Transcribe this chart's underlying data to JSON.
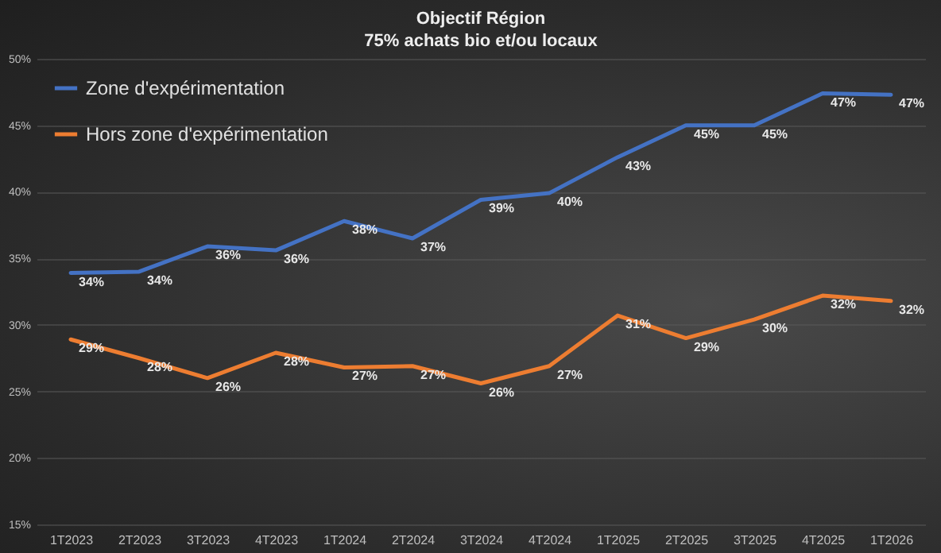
{
  "chart_data": {
    "type": "line",
    "title": "Objectif  Région",
    "subtitle": "75% achats  bio et/ou locaux",
    "categories": [
      "1T2023",
      "2T2023",
      "3T2023",
      "4T2023",
      "1T2024",
      "2T2024",
      "3T2024",
      "4T2024",
      "1T2025",
      "2T2025",
      "3T2025",
      "4T2025",
      "1T2026"
    ],
    "series": [
      {
        "name": "Zone d'expérimentation",
        "color": "#4472c4",
        "values": [
          33.9,
          34.0,
          35.9,
          35.6,
          37.8,
          36.5,
          39.4,
          39.9,
          42.6,
          45.0,
          45.0,
          47.4,
          47.3
        ],
        "value_labels": [
          "34%",
          "34%",
          "36%",
          "36%",
          "38%",
          "37%",
          "39%",
          "40%",
          "43%",
          "45%",
          "45%",
          "47%",
          "47%"
        ]
      },
      {
        "name": "Hors zone d'expérimentation",
        "color": "#ed7d31",
        "values": [
          28.9,
          27.5,
          26.0,
          27.9,
          26.8,
          26.9,
          25.6,
          26.9,
          30.7,
          29.0,
          30.4,
          32.2,
          31.8
        ],
        "value_labels": [
          "29%",
          "28%",
          "26%",
          "28%",
          "27%",
          "27%",
          "26%",
          "27%",
          "31%",
          "29%",
          "30%",
          "32%",
          "32%"
        ]
      }
    ],
    "ylim": [
      15,
      50
    ],
    "yticks": [
      {
        "value": 15,
        "label": "15%"
      },
      {
        "value": 20,
        "label": "20%"
      },
      {
        "value": 25,
        "label": "25%"
      },
      {
        "value": 30,
        "label": "30%"
      },
      {
        "value": 35,
        "label": "35%"
      },
      {
        "value": 40,
        "label": "40%"
      },
      {
        "value": 45,
        "label": "45%"
      },
      {
        "value": 50,
        "label": "50%"
      }
    ],
    "grid": "y",
    "legend": "top left"
  }
}
